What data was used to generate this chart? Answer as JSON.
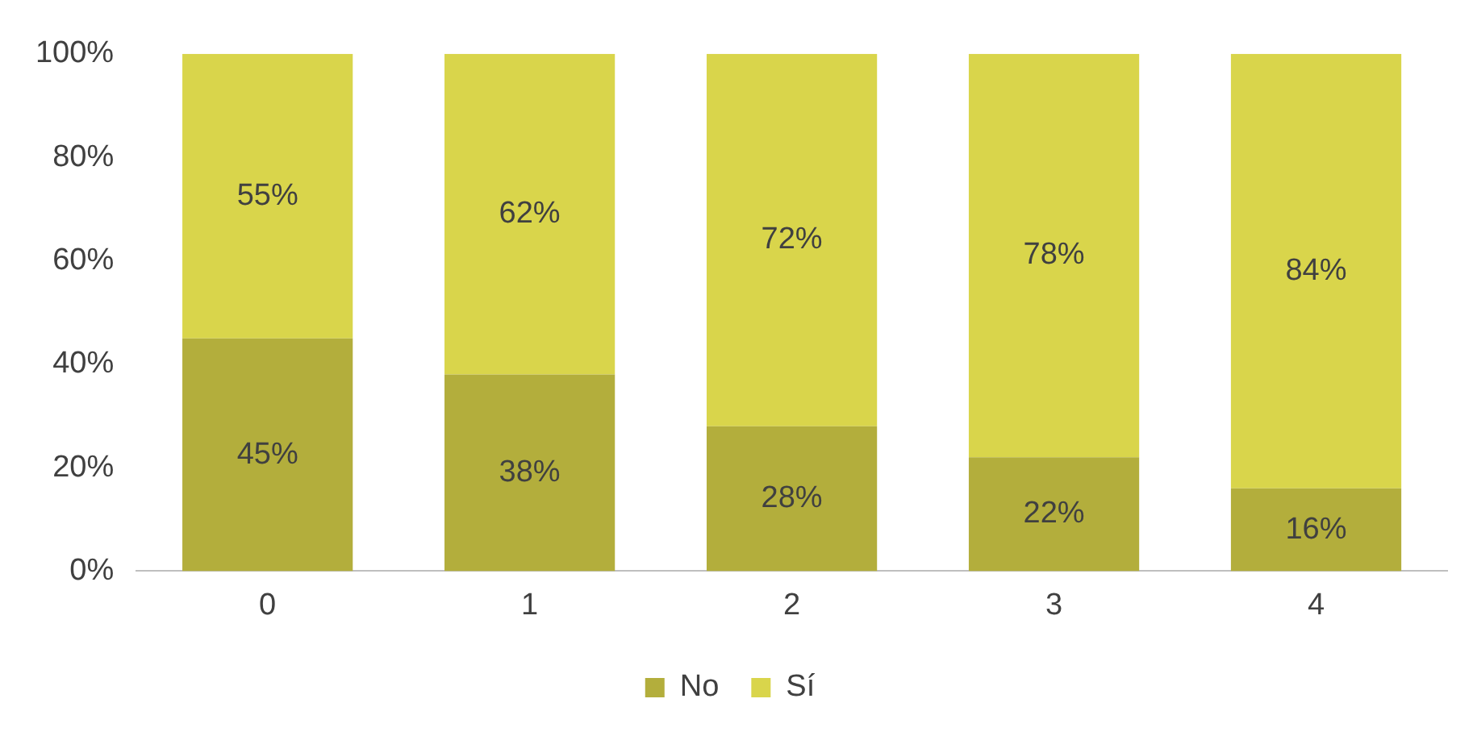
{
  "chart_data": {
    "type": "bar",
    "stacked": true,
    "categories": [
      "0",
      "1",
      "2",
      "3",
      "4"
    ],
    "series": [
      {
        "name": "No",
        "color": "#b3ae3c",
        "values": [
          45,
          38,
          28,
          22,
          16
        ],
        "value_labels": [
          "45%",
          "38%",
          "28%",
          "22%",
          "16%"
        ]
      },
      {
        "name": "Sí",
        "color": "#d9d54b",
        "values": [
          55,
          62,
          72,
          78,
          84
        ],
        "value_labels": [
          "55%",
          "62%",
          "72%",
          "78%",
          "84%"
        ]
      }
    ],
    "ylim": [
      0,
      100
    ],
    "yticks": [
      {
        "value": 0,
        "label": "0%"
      },
      {
        "value": 20,
        "label": "20%"
      },
      {
        "value": 40,
        "label": "40%"
      },
      {
        "value": 60,
        "label": "60%"
      },
      {
        "value": 80,
        "label": "80%"
      },
      {
        "value": 100,
        "label": "100%"
      }
    ],
    "grid": false,
    "legend": "bottom"
  }
}
